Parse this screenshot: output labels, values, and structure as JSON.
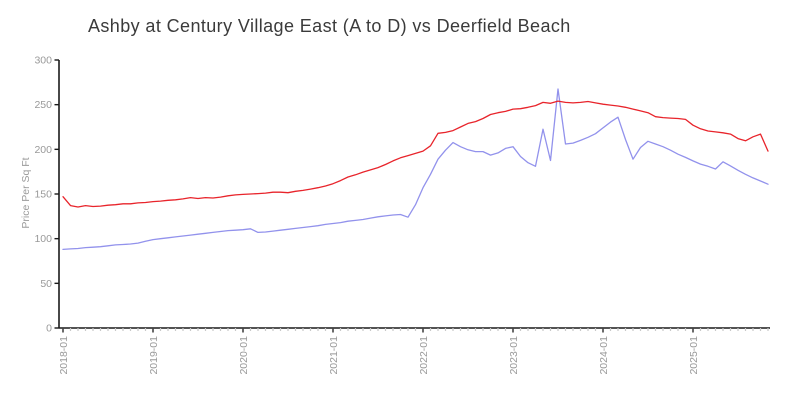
{
  "chart_data": {
    "type": "line",
    "title": "Ashby at Century Village East (A to D) vs Deerfield Beach",
    "xlabel": "",
    "ylabel": "Price Per Sq Ft",
    "ylim": [
      0,
      300
    ],
    "yticks": [
      0,
      50,
      100,
      150,
      200,
      250,
      300
    ],
    "x_start": "2018-01",
    "x_frequency": "monthly",
    "xtick_labels": [
      "2018-01",
      "2019-01",
      "2020-01",
      "2021-01",
      "2022-01",
      "2023-01",
      "2024-01",
      "2025-01"
    ],
    "grid": false,
    "legend_position": "none",
    "axis_color": "#1a1a1a",
    "tick_label_color": "#999999",
    "minor_tick_color": "#c8c8c8",
    "series": [
      {
        "name": "Deerfield Beach",
        "color": "#e8242b",
        "values": [
          147,
          137,
          135.5,
          137,
          136,
          136.5,
          137.5,
          138,
          139,
          139,
          140,
          140.5,
          141.5,
          142,
          143,
          143.5,
          144.5,
          146,
          145,
          146,
          145.5,
          146.5,
          148,
          149,
          149.5,
          150,
          150.5,
          151,
          152,
          152,
          151.5,
          153,
          154,
          155.5,
          157,
          159,
          161.5,
          165,
          169,
          171.5,
          174.5,
          177,
          179.5,
          183,
          187,
          190.5,
          193,
          195.5,
          198,
          204,
          218,
          219,
          221,
          225,
          229,
          231,
          234.5,
          239,
          241,
          242.5,
          245,
          245.5,
          247,
          249,
          252.5,
          251.5,
          254,
          252.5,
          252,
          252.5,
          253.5,
          252,
          250.5,
          249.5,
          248.5,
          247,
          245,
          243,
          241,
          236.5,
          235.5,
          235,
          234.5,
          233.5,
          227,
          223,
          220.5,
          219.5,
          218.5,
          217,
          212,
          209.5,
          214,
          217,
          198
        ]
      },
      {
        "name": "Ashby at Century Village East (A to D)",
        "color": "#9292ec",
        "values": [
          88,
          88.5,
          89,
          90,
          90.5,
          91,
          92,
          93,
          93.5,
          94,
          95,
          97,
          99,
          100,
          101,
          102,
          103,
          104,
          105,
          106,
          107,
          108,
          109,
          109.5,
          110,
          111,
          107,
          107.5,
          108.5,
          109.5,
          110.5,
          111.5,
          112.5,
          113.5,
          114.5,
          116,
          117,
          118,
          119.5,
          120.5,
          121.5,
          123,
          124.5,
          125.5,
          126.5,
          127,
          124,
          138,
          157,
          172,
          189,
          199,
          207.5,
          203,
          199.5,
          197.5,
          197.5,
          193.5,
          196,
          201,
          203,
          192,
          185,
          181,
          222.5,
          187.5,
          267.5,
          206,
          207,
          210,
          213.5,
          217.5,
          224,
          230.5,
          236,
          211,
          189,
          202,
          209,
          206,
          203,
          199,
          194.5,
          191,
          187,
          183.5,
          181,
          178,
          186,
          181.5,
          176.5,
          172,
          168,
          164.5,
          161
        ]
      }
    ]
  }
}
